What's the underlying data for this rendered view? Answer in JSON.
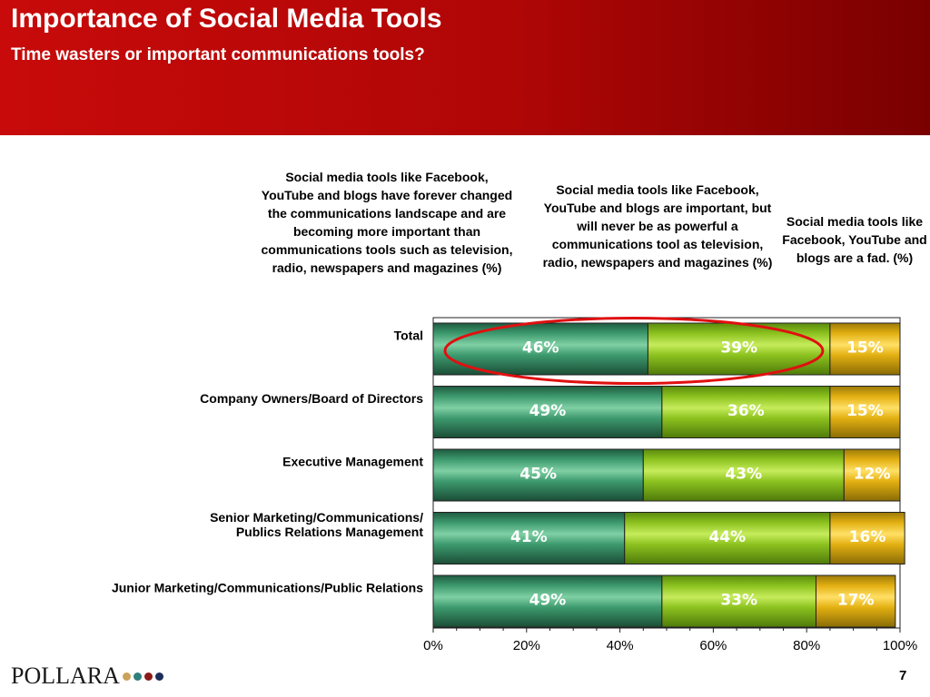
{
  "slide": {
    "title": "Importance of Social Media Tools",
    "subtitle": "Time wasters or important communications tools?",
    "page_number": "7",
    "logo_text": "POLLARA",
    "logo_dot_colors": [
      "#c9a35a",
      "#2f7f7a",
      "#8b1a1a",
      "#1c2d5a"
    ]
  },
  "column_headers": [
    "Social media tools like Facebook, YouTube and blogs have forever changed the communications landscape and are becoming more important than communications tools such as television, radio, newspapers and magazines (%)",
    "Social media tools like Facebook, YouTube and blogs are important, but will never be as powerful a communications tool as television, radio, newspapers and magazines (%)",
    "Social media tools like Facebook, YouTube and blogs are a fad. (%)"
  ],
  "chart_data": {
    "type": "bar",
    "orientation": "horizontal",
    "stacked": true,
    "categories": [
      "Total",
      "Company Owners/Board of Directors",
      "Executive Management",
      "Senior Marketing/Communications/ Publics Relations Management",
      "Junior Marketing/Communications/Public Relations"
    ],
    "series": [
      {
        "values": [
          46,
          49,
          45,
          41,
          49
        ],
        "labels": [
          "46%",
          "49%",
          "45%",
          "41%",
          "49%"
        ],
        "color": "#2f8a62"
      },
      {
        "values": [
          39,
          36,
          43,
          44,
          33
        ],
        "labels": [
          "39%",
          "36%",
          "43%",
          "44%",
          "33%"
        ],
        "color": "#8cc21f"
      },
      {
        "values": [
          15,
          15,
          12,
          16,
          17
        ],
        "labels": [
          "15%",
          "15%",
          "12%",
          "16%",
          "17%"
        ],
        "color": "#e3b012"
      }
    ],
    "x_ticks": [
      "0%",
      "20%",
      "40%",
      "60%",
      "80%",
      "100%"
    ],
    "xlim": [
      0,
      100
    ],
    "grid": false,
    "annotations": [
      {
        "type": "ellipse",
        "color": "#e01010",
        "highlights": "Total: 46% and 39%"
      }
    ]
  }
}
